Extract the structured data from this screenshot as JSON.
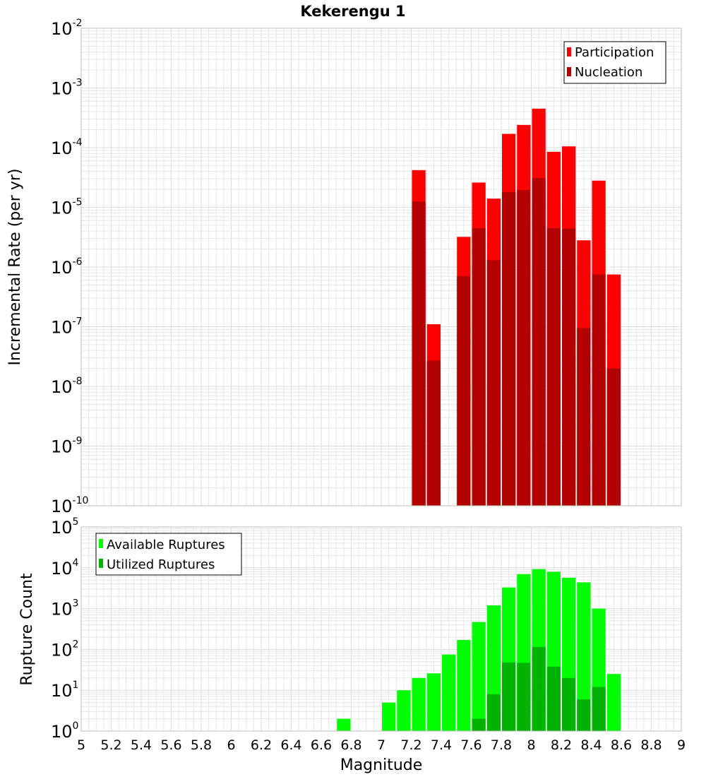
{
  "chart_data": [
    {
      "type": "bar",
      "title": "Kekerengu 1",
      "xlabel": "",
      "ylabel": "Incremental Rate (per yr)",
      "yscale": "log",
      "ylim": [
        1e-10,
        0.01
      ],
      "xlim": [
        5,
        9
      ],
      "bar_width": 0.1,
      "grid": true,
      "legend": "top-right",
      "x": [
        7.25,
        7.35,
        7.55,
        7.65,
        7.75,
        7.85,
        7.95,
        8.05,
        8.15,
        8.25,
        8.35,
        8.45,
        8.55
      ],
      "series": [
        {
          "name": "Participation",
          "color": "#ff0000",
          "values": [
            4.2e-05,
            1.1e-07,
            3.2e-06,
            2.6e-05,
            1.4e-05,
            0.00017,
            0.00024,
            0.00045,
            8.5e-05,
            0.000105,
            2.8e-06,
            2.8e-05,
            7.5e-07
          ]
        },
        {
          "name": "Nucleation",
          "color": "#b30000",
          "values": [
            1.25e-05,
            2.7e-08,
            7e-07,
            4.5e-06,
            1.3e-06,
            1.8e-05,
            1.95e-05,
            3.1e-05,
            4.5e-06,
            4.4e-06,
            9.5e-08,
            7.5e-07,
            2e-08
          ]
        }
      ]
    },
    {
      "type": "bar",
      "title": "",
      "xlabel": "Magnitude",
      "ylabel": "Rupture Count",
      "yscale": "log",
      "ylim": [
        1,
        100000.0
      ],
      "xlim": [
        5,
        9
      ],
      "bar_width": 0.1,
      "grid": true,
      "legend": "top-left",
      "x_ticks": [
        "5",
        "5.2",
        "5.4",
        "5.6",
        "5.8",
        "6",
        "6.2",
        "6.4",
        "6.6",
        "6.8",
        "7",
        "7.2",
        "7.4",
        "7.6",
        "7.8",
        "8",
        "8.2",
        "8.4",
        "8.6",
        "8.8",
        "9"
      ],
      "x": [
        6.75,
        6.95,
        7.05,
        7.15,
        7.25,
        7.35,
        7.45,
        7.55,
        7.65,
        7.75,
        7.85,
        7.95,
        8.05,
        8.15,
        8.25,
        8.35,
        8.45,
        8.55
      ],
      "series": [
        {
          "name": "Available Ruptures",
          "color": "#00ff00",
          "values": [
            2,
            1,
            5,
            10,
            20,
            26,
            75,
            170,
            470,
            1200,
            3300,
            7000,
            9300,
            8000,
            5700,
            4400,
            1000,
            25
          ]
        },
        {
          "name": "Utilized Ruptures",
          "color": "#00b300",
          "values": [
            0,
            0,
            0,
            0,
            1,
            1,
            0,
            1,
            2,
            8,
            48,
            47,
            115,
            38,
            20,
            6,
            12,
            1
          ]
        }
      ]
    }
  ]
}
